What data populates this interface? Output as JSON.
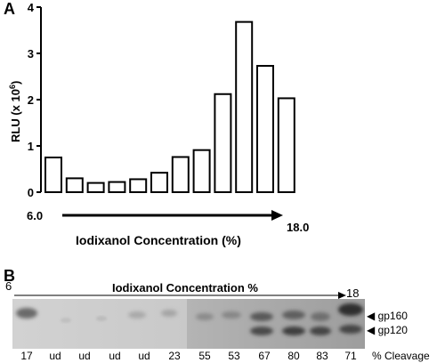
{
  "panel_a": {
    "letter": "A",
    "ylabel_main": "RLU (x 10",
    "ylabel_exp": "6",
    "ylabel_close": ")",
    "yticks": [
      "0",
      "1",
      "2",
      "3",
      "4"
    ],
    "xaxis_title": "Iodixanol Concentration (%)",
    "range_start": "6.0",
    "range_end": "18.0"
  },
  "chart_data": {
    "type": "bar",
    "categories": [
      "1",
      "2",
      "3",
      "4",
      "5",
      "6",
      "7",
      "8",
      "9",
      "10",
      "11",
      "12"
    ],
    "values": [
      0.75,
      0.3,
      0.2,
      0.22,
      0.28,
      0.42,
      0.76,
      0.91,
      2.12,
      3.68,
      2.73,
      2.03
    ],
    "title": "",
    "xlabel": "Iodixanol Concentration (%)",
    "ylabel": "RLU (x 10^6)",
    "ylim": [
      0,
      4
    ],
    "grid": false,
    "bar_fill": "#ffffff",
    "bar_stroke": "#000000"
  },
  "panel_b": {
    "letter": "B",
    "range_start": "6",
    "range_end": "18",
    "title": "Iodixanol Concentration %",
    "bands": [
      {
        "label": "gp160"
      },
      {
        "label": "gp120"
      }
    ],
    "cleavage_values": [
      "17",
      "ud",
      "ud",
      "ud",
      "ud",
      "23",
      "55",
      "53",
      "67",
      "80",
      "83",
      "71"
    ],
    "cleavage_label": "% Cleavage"
  }
}
